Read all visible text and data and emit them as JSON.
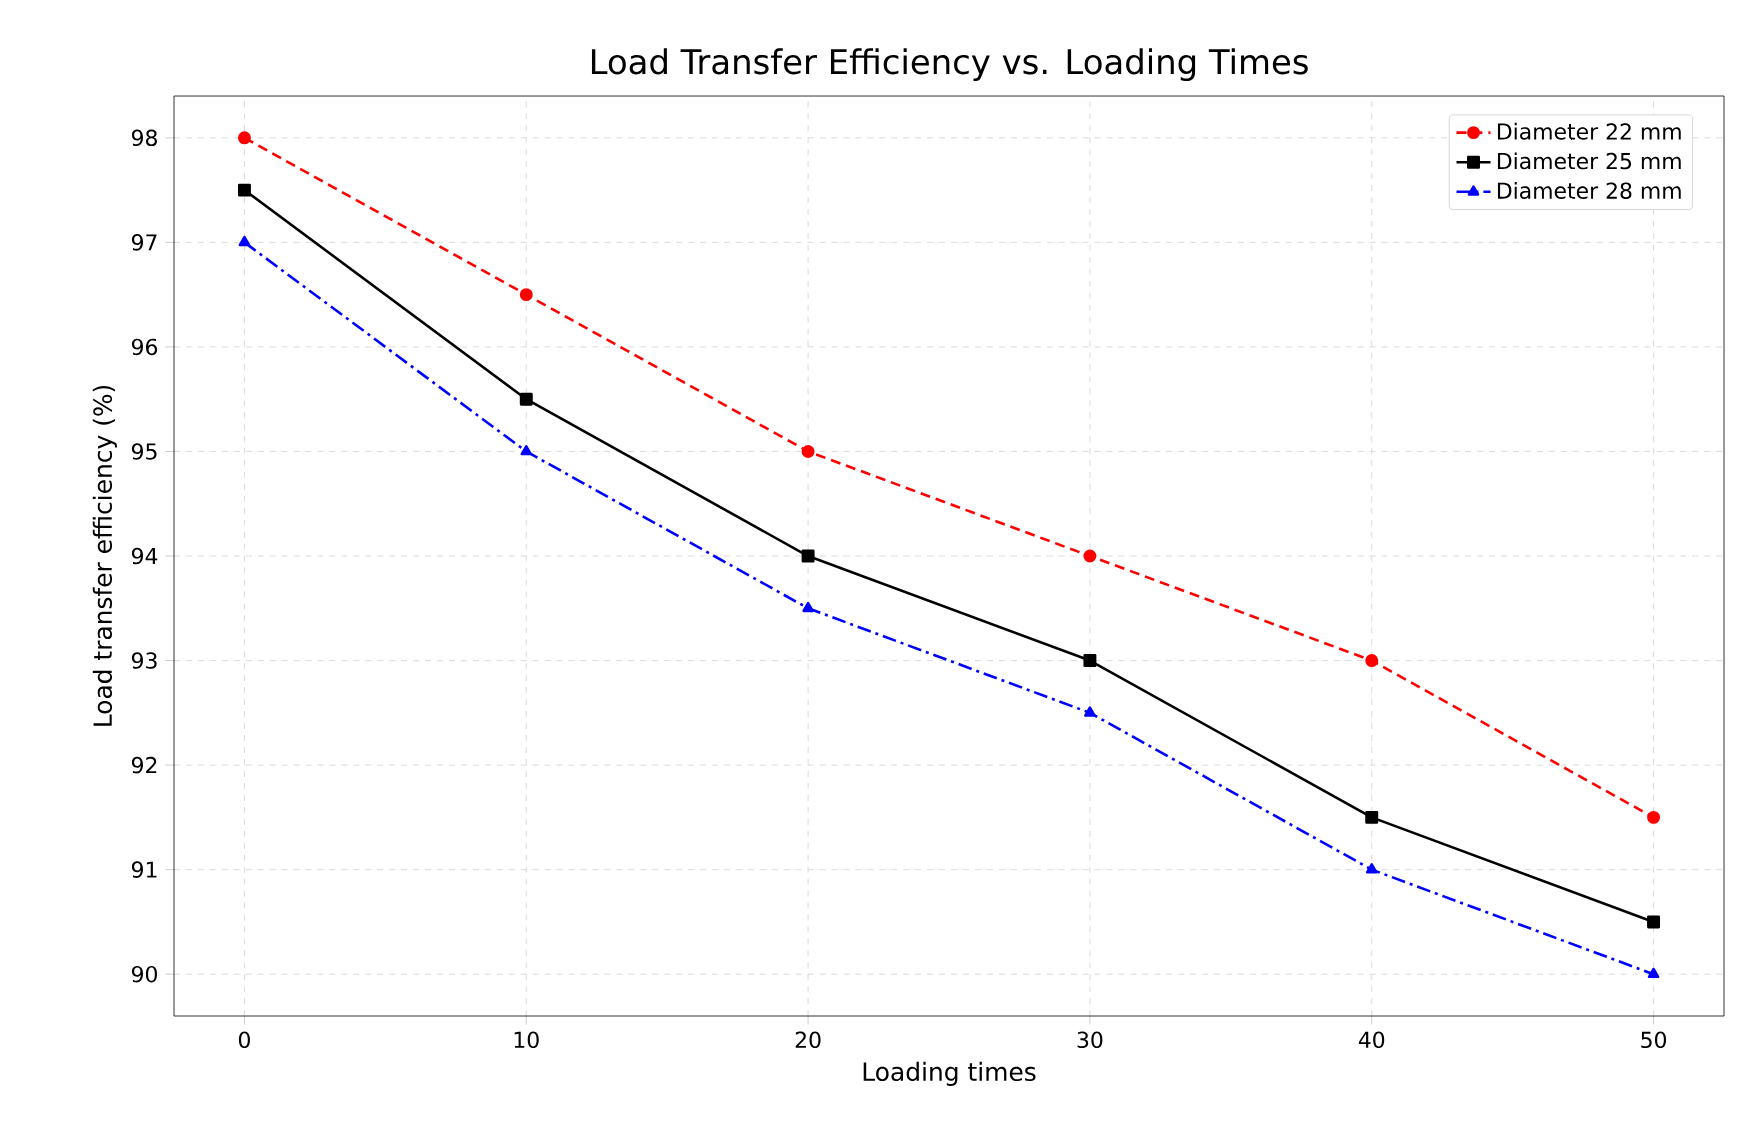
{
  "chart_data": {
    "type": "line",
    "title": "Load Transfer Efficiency vs. Loading Times",
    "xlabel": "Loading times",
    "ylabel": "Load transfer efficiency (%)",
    "x": [
      0,
      10,
      20,
      30,
      40,
      50
    ],
    "series": [
      {
        "name": "Diameter 22 mm",
        "color": "#ff0000",
        "values": [
          98,
          96.5,
          95,
          94,
          93,
          91.5
        ],
        "marker": "circle",
        "line_style": "dashed"
      },
      {
        "name": "Diameter 25 mm",
        "color": "#000000",
        "values": [
          97.5,
          95.5,
          94,
          93,
          91.5,
          90.5
        ],
        "marker": "square",
        "line_style": "solid"
      },
      {
        "name": "Diameter 28 mm",
        "color": "#0000ff",
        "values": [
          97,
          95,
          93.5,
          92.5,
          91,
          90
        ],
        "marker": "triangle",
        "line_style": "dashdot"
      }
    ],
    "xlim": [
      -2.5,
      52.5
    ],
    "ylim": [
      89.6,
      98.4
    ],
    "xticks": [
      0,
      10,
      20,
      30,
      40,
      50
    ],
    "yticks": [
      90,
      91,
      92,
      93,
      94,
      95,
      96,
      97,
      98
    ],
    "grid": true,
    "legend": "top right"
  }
}
